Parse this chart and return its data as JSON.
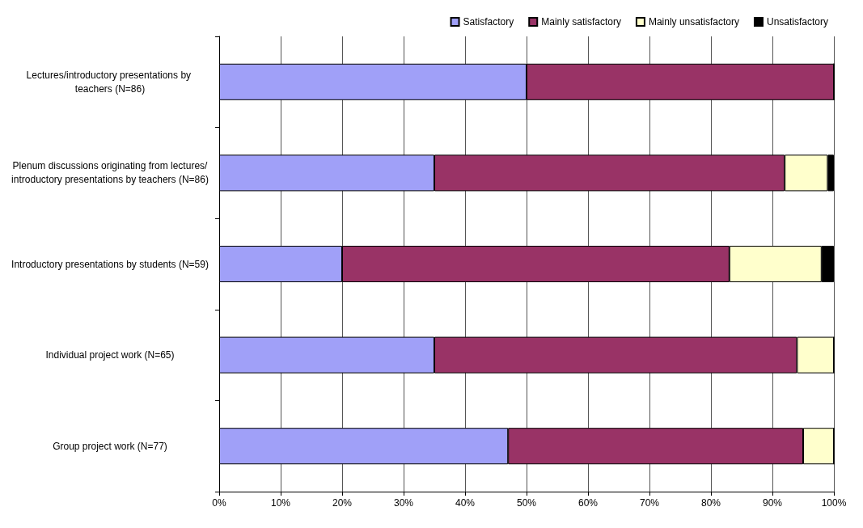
{
  "chart_data": {
    "type": "bar",
    "orientation": "horizontal",
    "stacked": true,
    "categories": [
      "Lectures/introductory presentations by teachers (N=86)",
      "Plenum discussions originating from lectures/introductory presentations by teachers (N=86)",
      "Introductory presentations by students (N=59)",
      "Individual project work (N=65)",
      "Group project work (N=77)"
    ],
    "series": [
      {
        "name": "Satisfactory",
        "color": "#a0a0f8",
        "values": [
          50,
          35,
          20,
          35,
          47
        ]
      },
      {
        "name": "Mainly satisfactory",
        "color": "#993366",
        "values": [
          50,
          57,
          63,
          59,
          48
        ]
      },
      {
        "name": "Mainly unsatisfactory",
        "color": "#ffffcc",
        "values": [
          0,
          7,
          15,
          6,
          5
        ]
      },
      {
        "name": "Unsatisfactory",
        "color": "#000000",
        "values": [
          0,
          1,
          2,
          0,
          0
        ]
      }
    ],
    "xlim": [
      0,
      100
    ],
    "xticks": [
      {
        "value": 0,
        "label": "0%"
      },
      {
        "value": 10,
        "label": "10%"
      },
      {
        "value": 20,
        "label": "20%"
      },
      {
        "value": 30,
        "label": "30%"
      },
      {
        "value": 40,
        "label": "40%"
      },
      {
        "value": 50,
        "label": "50%"
      },
      {
        "value": 60,
        "label": "60%"
      },
      {
        "value": 70,
        "label": "70%"
      },
      {
        "value": 80,
        "label": "80%"
      },
      {
        "value": 90,
        "label": "90%"
      },
      {
        "value": 100,
        "label": "100%"
      }
    ],
    "grid": "x",
    "legend": "top right"
  }
}
